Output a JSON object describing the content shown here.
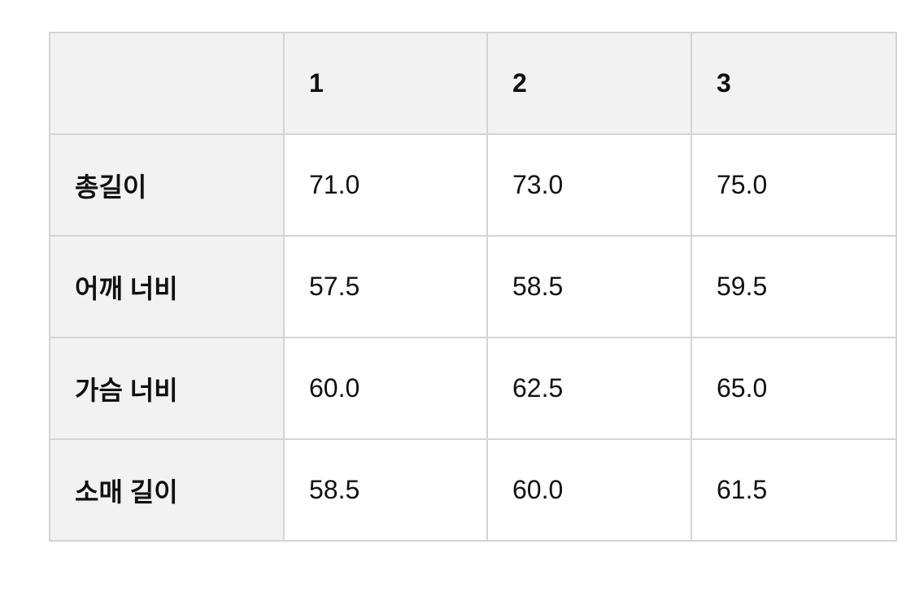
{
  "table": {
    "headers": [
      "",
      "1",
      "2",
      "3"
    ],
    "rows": [
      {
        "label": "총길이",
        "values": [
          "71.0",
          "73.0",
          "75.0"
        ]
      },
      {
        "label": "어깨 너비",
        "values": [
          "57.5",
          "58.5",
          "59.5"
        ]
      },
      {
        "label": "가슴 너비",
        "values": [
          "60.0",
          "62.5",
          "65.0"
        ]
      },
      {
        "label": "소매 길이",
        "values": [
          "58.5",
          "60.0",
          "61.5"
        ]
      }
    ]
  }
}
